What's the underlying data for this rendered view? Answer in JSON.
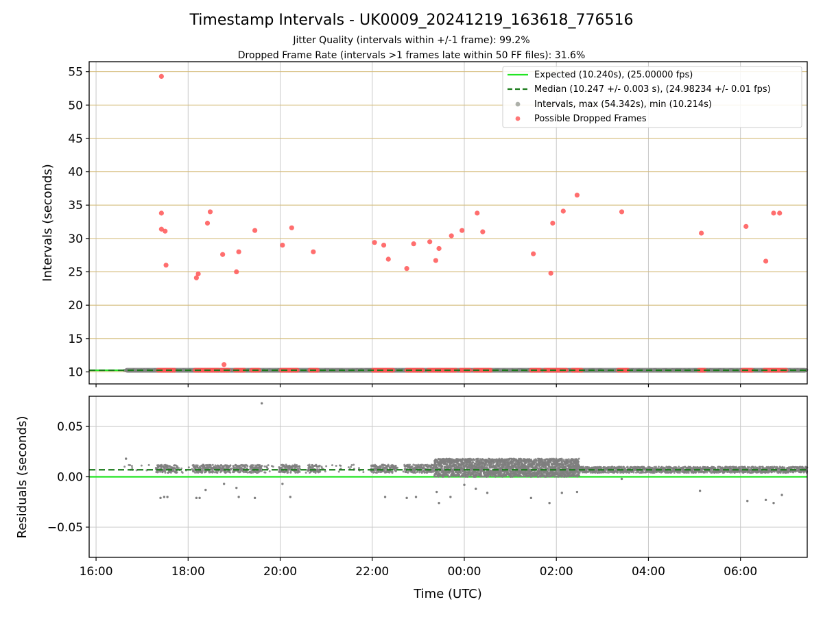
{
  "figure": {
    "title": "Timestamp Intervals - UK0009_20241219_163618_776516",
    "subtitle_1": "Jitter Quality (intervals within +/-1 frame): 99.2%",
    "subtitle_2": "Dropped Frame Rate (intervals >1 frames late within 50 FF files): 31.6%"
  },
  "chart_data": [
    {
      "type": "scatter",
      "panel": "intervals",
      "ylabel": "Intervals (seconds)",
      "ylim": [
        8.2,
        56.5
      ],
      "yticks": [
        10,
        15,
        20,
        25,
        30,
        35,
        40,
        45,
        50,
        55
      ],
      "ytick_labels": [
        "10",
        "15",
        "20",
        "25",
        "30",
        "35",
        "40",
        "45",
        "50",
        "55"
      ],
      "xlim_hours": [
        15.85,
        31.45
      ],
      "xticks_hours": [
        16,
        18,
        20,
        22,
        24,
        26,
        28,
        30
      ],
      "grid": true,
      "horizontal_grid_color": "#d4bb79",
      "legend_position": "upper right",
      "legend": [
        {
          "label": "Expected (10.240s), (25.00000 fps)",
          "kind": "line",
          "color": "#22e522"
        },
        {
          "label": "Median (10.247 +/- 0.003 s), (24.98234 +/- 0.01 fps)",
          "kind": "dashed",
          "color": "#1a7a1a"
        },
        {
          "label": "Intervals, max (54.342s), min (10.214s)",
          "kind": "dot",
          "color": "#8a8f86"
        },
        {
          "label": "Possible Dropped Frames",
          "kind": "dot",
          "color": "#ff5555"
        }
      ],
      "expected_value": 10.24,
      "median_value": 10.247,
      "intervals_range_hours": [
        16.62,
        31.45
      ],
      "dropped_frames": [
        [
          17.42,
          54.3
        ],
        [
          17.42,
          33.8
        ],
        [
          17.42,
          31.4
        ],
        [
          17.5,
          31.1
        ],
        [
          17.52,
          26.0
        ],
        [
          18.18,
          24.1
        ],
        [
          18.22,
          24.7
        ],
        [
          18.42,
          32.3
        ],
        [
          18.48,
          34.0
        ],
        [
          18.75,
          27.6
        ],
        [
          18.78,
          11.1
        ],
        [
          19.05,
          25.0
        ],
        [
          19.1,
          28.0
        ],
        [
          19.45,
          31.2
        ],
        [
          20.05,
          29.0
        ],
        [
          20.25,
          31.6
        ],
        [
          20.72,
          28.0
        ],
        [
          22.05,
          29.4
        ],
        [
          22.25,
          29.0
        ],
        [
          22.35,
          26.9
        ],
        [
          22.75,
          25.5
        ],
        [
          22.9,
          29.2
        ],
        [
          23.25,
          29.5
        ],
        [
          23.38,
          26.7
        ],
        [
          23.45,
          28.5
        ],
        [
          23.72,
          30.4
        ],
        [
          23.95,
          31.2
        ],
        [
          24.28,
          33.8
        ],
        [
          24.4,
          31.0
        ],
        [
          25.5,
          27.7
        ],
        [
          25.88,
          24.8
        ],
        [
          25.92,
          32.3
        ],
        [
          26.15,
          34.1
        ],
        [
          26.45,
          36.5
        ],
        [
          27.42,
          34.0
        ],
        [
          29.15,
          30.8
        ],
        [
          30.12,
          31.8
        ],
        [
          30.55,
          26.6
        ],
        [
          30.72,
          33.8
        ],
        [
          30.85,
          33.8
        ]
      ],
      "dropped_clusters_near_expected": [
        [
          17.35,
          17.72
        ],
        [
          18.15,
          18.68
        ],
        [
          18.72,
          18.88
        ],
        [
          19.02,
          19.25
        ],
        [
          19.38,
          19.55
        ],
        [
          20.02,
          20.38
        ],
        [
          20.65,
          20.82
        ],
        [
          22.02,
          22.48
        ],
        [
          22.75,
          23.12
        ],
        [
          23.22,
          23.62
        ],
        [
          23.62,
          23.82
        ],
        [
          23.92,
          24.15
        ],
        [
          24.22,
          24.58
        ],
        [
          25.45,
          25.68
        ],
        [
          25.75,
          26.0
        ],
        [
          26.02,
          26.25
        ],
        [
          26.35,
          26.55
        ],
        [
          27.35,
          27.58
        ],
        [
          29.1,
          29.25
        ],
        [
          30.05,
          30.28
        ],
        [
          30.52,
          31.0
        ]
      ]
    },
    {
      "type": "scatter",
      "panel": "residuals",
      "xlabel": "Time (UTC)",
      "ylabel": "Residuals (seconds)",
      "ylim": [
        -0.08,
        0.08
      ],
      "yticks": [
        -0.05,
        0.0,
        0.05
      ],
      "ytick_labels": [
        "−0.05",
        "0.00",
        "0.05"
      ],
      "xticks_hours": [
        16,
        18,
        20,
        22,
        24,
        26,
        28,
        30
      ],
      "xtick_labels": [
        "16:00",
        "18:00",
        "20:00",
        "22:00",
        "00:00",
        "02:00",
        "04:00",
        "06:00"
      ],
      "grid": true,
      "expected_residual": 0.0,
      "median_residual": 0.007,
      "outliers": [
        [
          19.6,
          0.073
        ],
        [
          16.65,
          0.018
        ],
        [
          17.4,
          -0.021
        ],
        [
          17.48,
          -0.02
        ],
        [
          17.55,
          -0.02
        ],
        [
          18.18,
          -0.021
        ],
        [
          18.25,
          -0.021
        ],
        [
          18.38,
          -0.013
        ],
        [
          18.78,
          -0.007
        ],
        [
          19.05,
          -0.011
        ],
        [
          19.1,
          -0.02
        ],
        [
          19.45,
          -0.021
        ],
        [
          20.05,
          -0.007
        ],
        [
          20.22,
          -0.02
        ],
        [
          22.28,
          -0.02
        ],
        [
          22.75,
          -0.021
        ],
        [
          22.95,
          -0.02
        ],
        [
          23.4,
          -0.015
        ],
        [
          23.45,
          -0.026
        ],
        [
          23.7,
          -0.02
        ],
        [
          24.0,
          -0.008
        ],
        [
          24.25,
          -0.012
        ],
        [
          24.5,
          -0.016
        ],
        [
          25.45,
          -0.021
        ],
        [
          25.85,
          -0.026
        ],
        [
          26.12,
          -0.016
        ],
        [
          26.45,
          -0.015
        ],
        [
          27.42,
          -0.002
        ],
        [
          29.12,
          -0.014
        ],
        [
          30.15,
          -0.024
        ],
        [
          30.55,
          -0.023
        ],
        [
          30.72,
          -0.026
        ],
        [
          30.9,
          -0.018
        ]
      ]
    }
  ],
  "colors": {
    "expected": "#22e522",
    "median": "#1a7a1a",
    "intervals": "#7f7f7f",
    "dropped": "#ff5555",
    "grid": "#c8c8c8",
    "hgrid_top": "#d4bb79"
  }
}
